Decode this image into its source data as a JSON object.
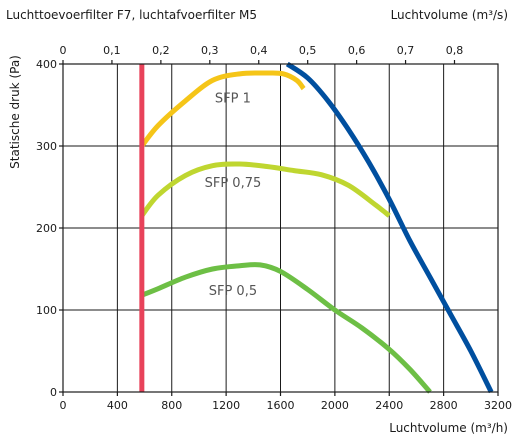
{
  "header": {
    "left_title": "Luchttoevoerfilter F7, luchtafvoerfilter M5",
    "right_label": "Luchtvolume (m³/s)"
  },
  "chart_data": {
    "type": "line",
    "title": "Luchttoevoerfilter F7, luchtafvoerfilter M5",
    "xlabel": "Luchtvolume (m³/h)",
    "x2label": "Luchtvolume (m³/s)",
    "ylabel": "Statische druk (Pa)",
    "xlim": [
      0,
      3200
    ],
    "ylim": [
      0,
      400
    ],
    "x2lim": [
      0,
      0.888889
    ],
    "x_ticks": [
      "0",
      "400",
      "800",
      "1200",
      "1600",
      "2000",
      "2400",
      "2800",
      "3200"
    ],
    "x2_ticks": [
      "0",
      "0,1",
      "0,2",
      "0,3",
      "0,4",
      "0,5",
      "0,6",
      "0,7",
      "0,8"
    ],
    "y_ticks": [
      "0",
      "100",
      "200",
      "300",
      "400"
    ],
    "grid": true,
    "series": [
      {
        "name": "SFP 1",
        "color": "#f5c518",
        "label_at": [
          1250,
          353
        ],
        "points": [
          [
            580,
            300
          ],
          [
            700,
            325
          ],
          [
            900,
            355
          ],
          [
            1100,
            380
          ],
          [
            1300,
            388
          ],
          [
            1500,
            389
          ],
          [
            1620,
            388
          ],
          [
            1720,
            380
          ],
          [
            1770,
            370
          ]
        ]
      },
      {
        "name": "SFP 0,75",
        "color": "#bfd630",
        "label_at": [
          1250,
          250
        ],
        "points": [
          [
            580,
            215
          ],
          [
            700,
            240
          ],
          [
            900,
            264
          ],
          [
            1100,
            276
          ],
          [
            1300,
            278
          ],
          [
            1500,
            275
          ],
          [
            1700,
            270
          ],
          [
            1900,
            265
          ],
          [
            2100,
            252
          ],
          [
            2300,
            228
          ],
          [
            2400,
            215
          ]
        ]
      },
      {
        "name": "SFP 0,5",
        "color": "#6dbf45",
        "label_at": [
          1250,
          118
        ],
        "points": [
          [
            580,
            118
          ],
          [
            700,
            126
          ],
          [
            900,
            140
          ],
          [
            1100,
            150
          ],
          [
            1300,
            154
          ],
          [
            1450,
            155
          ],
          [
            1600,
            147
          ],
          [
            1800,
            125
          ],
          [
            2000,
            100
          ],
          [
            2200,
            78
          ],
          [
            2400,
            52
          ],
          [
            2550,
            28
          ],
          [
            2700,
            0
          ]
        ]
      },
      {
        "name": "",
        "color": "#004f9f",
        "points": [
          [
            1650,
            400
          ],
          [
            1800,
            383
          ],
          [
            1950,
            355
          ],
          [
            2100,
            320
          ],
          [
            2250,
            280
          ],
          [
            2400,
            235
          ],
          [
            2550,
            185
          ],
          [
            2700,
            140
          ],
          [
            2850,
            95
          ],
          [
            3000,
            50
          ],
          [
            3150,
            0
          ]
        ]
      },
      {
        "name": "",
        "color": "#e8425a",
        "points": [
          [
            580,
            0
          ],
          [
            580,
            400
          ]
        ]
      }
    ]
  }
}
